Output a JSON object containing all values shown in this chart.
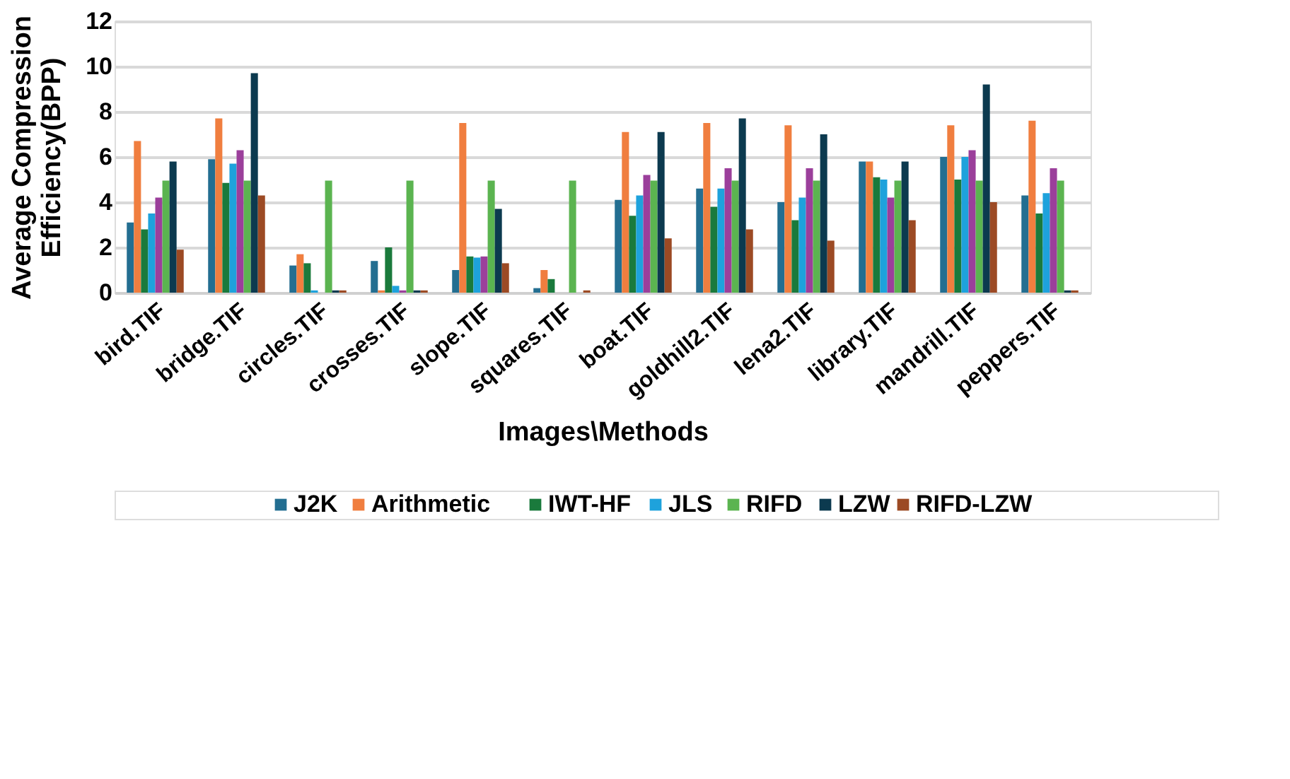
{
  "chart_data": {
    "type": "bar",
    "xlabel": "Images\\Methods",
    "ylabel": "Average Compression Efficiency(BPP)",
    "categories": [
      "bird.TIF",
      "bridge.TIF",
      "circles.TIF",
      "crosses.TIF",
      "slope.TIF",
      "squares.TIF",
      "boat.TIF",
      "goldhill2.TIF",
      "lena2.TIF",
      "library.TIF",
      "mandrill.TIF",
      "peppers.TIF"
    ],
    "series": [
      {
        "name": "J2K",
        "color": "#236e91",
        "values": [
          3.1,
          5.9,
          1.2,
          1.4,
          1.0,
          0.2,
          4.1,
          4.6,
          4.0,
          5.8,
          6.0,
          4.3
        ]
      },
      {
        "name": "Arithmetic",
        "color": "#f07e3f",
        "values": [
          6.7,
          7.7,
          1.7,
          0.1,
          7.5,
          1.0,
          7.1,
          7.5,
          7.4,
          5.8,
          7.4,
          7.6
        ]
      },
      {
        "name": "IWT-HF",
        "color": "#1a7a3c",
        "values": [
          2.8,
          4.85,
          1.3,
          2.0,
          1.6,
          0.6,
          3.4,
          3.8,
          3.2,
          5.1,
          5.0,
          3.5
        ]
      },
      {
        "name": "JLS",
        "color": "#1ea2dc",
        "values": [
          3.5,
          5.7,
          0.1,
          0.3,
          1.55,
          0,
          4.3,
          4.6,
          4.2,
          5.0,
          6.0,
          4.4
        ]
      },
      {
        "color": "#9b3f9b",
        "values": [
          4.2,
          6.3,
          0,
          0.1,
          1.6,
          0,
          5.2,
          5.5,
          5.5,
          4.2,
          6.3,
          5.5
        ]
      },
      {
        "name": "RIFD",
        "color": "#5bb450",
        "values": [
          4.95,
          4.95,
          4.95,
          4.95,
          4.95,
          4.95,
          4.95,
          4.95,
          4.95,
          4.95,
          4.95,
          4.95
        ]
      },
      {
        "name": "LZW",
        "color": "#0c3a4f",
        "values": [
          5.8,
          9.7,
          0.1,
          0.1,
          3.7,
          0,
          7.1,
          7.7,
          7.0,
          5.8,
          9.2,
          0.1
        ]
      },
      {
        "name": "RIFD-LZW",
        "color": "#9c4a24",
        "values": [
          1.9,
          4.3,
          0.1,
          0.1,
          1.3,
          0.1,
          2.4,
          2.8,
          2.3,
          3.2,
          4.0,
          0.1
        ]
      }
    ],
    "ylim": [
      0,
      12
    ],
    "yticks": [
      0,
      2,
      4,
      6,
      8,
      10,
      12
    ],
    "grid": "y",
    "legend": "bottom"
  }
}
